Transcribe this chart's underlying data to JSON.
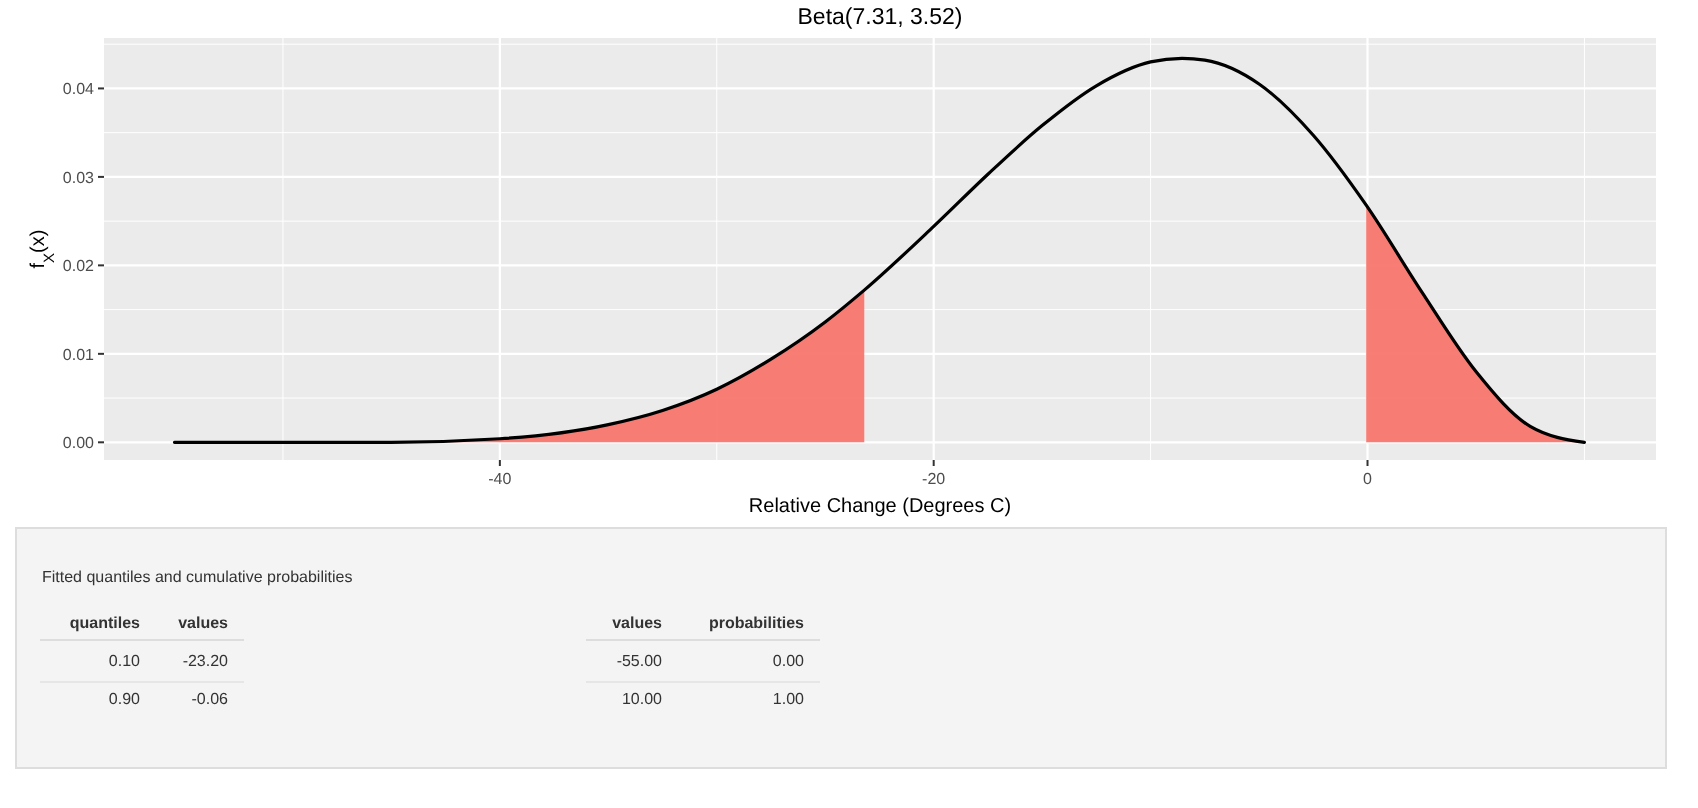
{
  "chart_data": [
    {
      "type": "line",
      "title": "Beta(7.31, 3.52)",
      "xlabel": "Relative Change (Degrees C)",
      "ylabel": "f$_{X}$(x)",
      "xlim": [
        -58.25,
        13.3
      ],
      "ylim": [
        -0.002,
        0.0457
      ],
      "xticks": [
        -40,
        -20,
        0
      ],
      "yticks": [
        {
          "value": 0,
          "label": "0.00"
        },
        {
          "value": 0.01,
          "label": "0.01"
        },
        {
          "value": 0.02,
          "label": "0.02"
        },
        {
          "value": 0.03,
          "label": "0.03"
        },
        {
          "value": 0.04,
          "label": "0.04"
        }
      ],
      "grid": true,
      "series": [
        {
          "type": "area",
          "color": "#f8766d",
          "x": [
            -55,
            -50,
            -45,
            -40,
            -35,
            -32.5,
            -30,
            -27.5,
            -25,
            -23.2
          ],
          "values": [
            0,
            0,
            0,
            0.0004,
            0.002,
            0.0036,
            0.006,
            0.0094,
            0.0136,
            0.0172
          ]
        },
        {
          "type": "area",
          "color": "#f8766d",
          "x": [
            -0.06,
            2.5,
            5,
            7.5,
            10
          ],
          "values": [
            0.0268,
            0.017,
            0.008,
            0.0018,
            0
          ]
        },
        {
          "type": "line",
          "color": "#000000",
          "x": [
            -55,
            -50,
            -45,
            -40,
            -35,
            -32.5,
            -30,
            -27.5,
            -25,
            -23.2,
            -20,
            -17.5,
            -15,
            -12.5,
            -10,
            -8.55,
            -7.5,
            -5,
            -2.5,
            -0.06,
            2.5,
            5,
            7.5,
            10
          ],
          "values": [
            0,
            0,
            0,
            0.0004,
            0.002,
            0.0036,
            0.006,
            0.0094,
            0.0136,
            0.0172,
            0.0244,
            0.0303,
            0.0358,
            0.0403,
            0.043,
            0.0434,
            0.0432,
            0.0405,
            0.0347,
            0.0268,
            0.017,
            0.008,
            0.0018,
            0
          ]
        }
      ]
    },
    {
      "type": "other",
      "title": "Fitted quantiles and cumulative probabilities",
      "annotations": [
        "quantiles",
        "values",
        "0.10",
        "-23.20",
        "0.90",
        "-0.06",
        "values",
        "probabilities",
        "-55.00",
        "0.00",
        "10.00",
        "1.00"
      ]
    }
  ]
}
